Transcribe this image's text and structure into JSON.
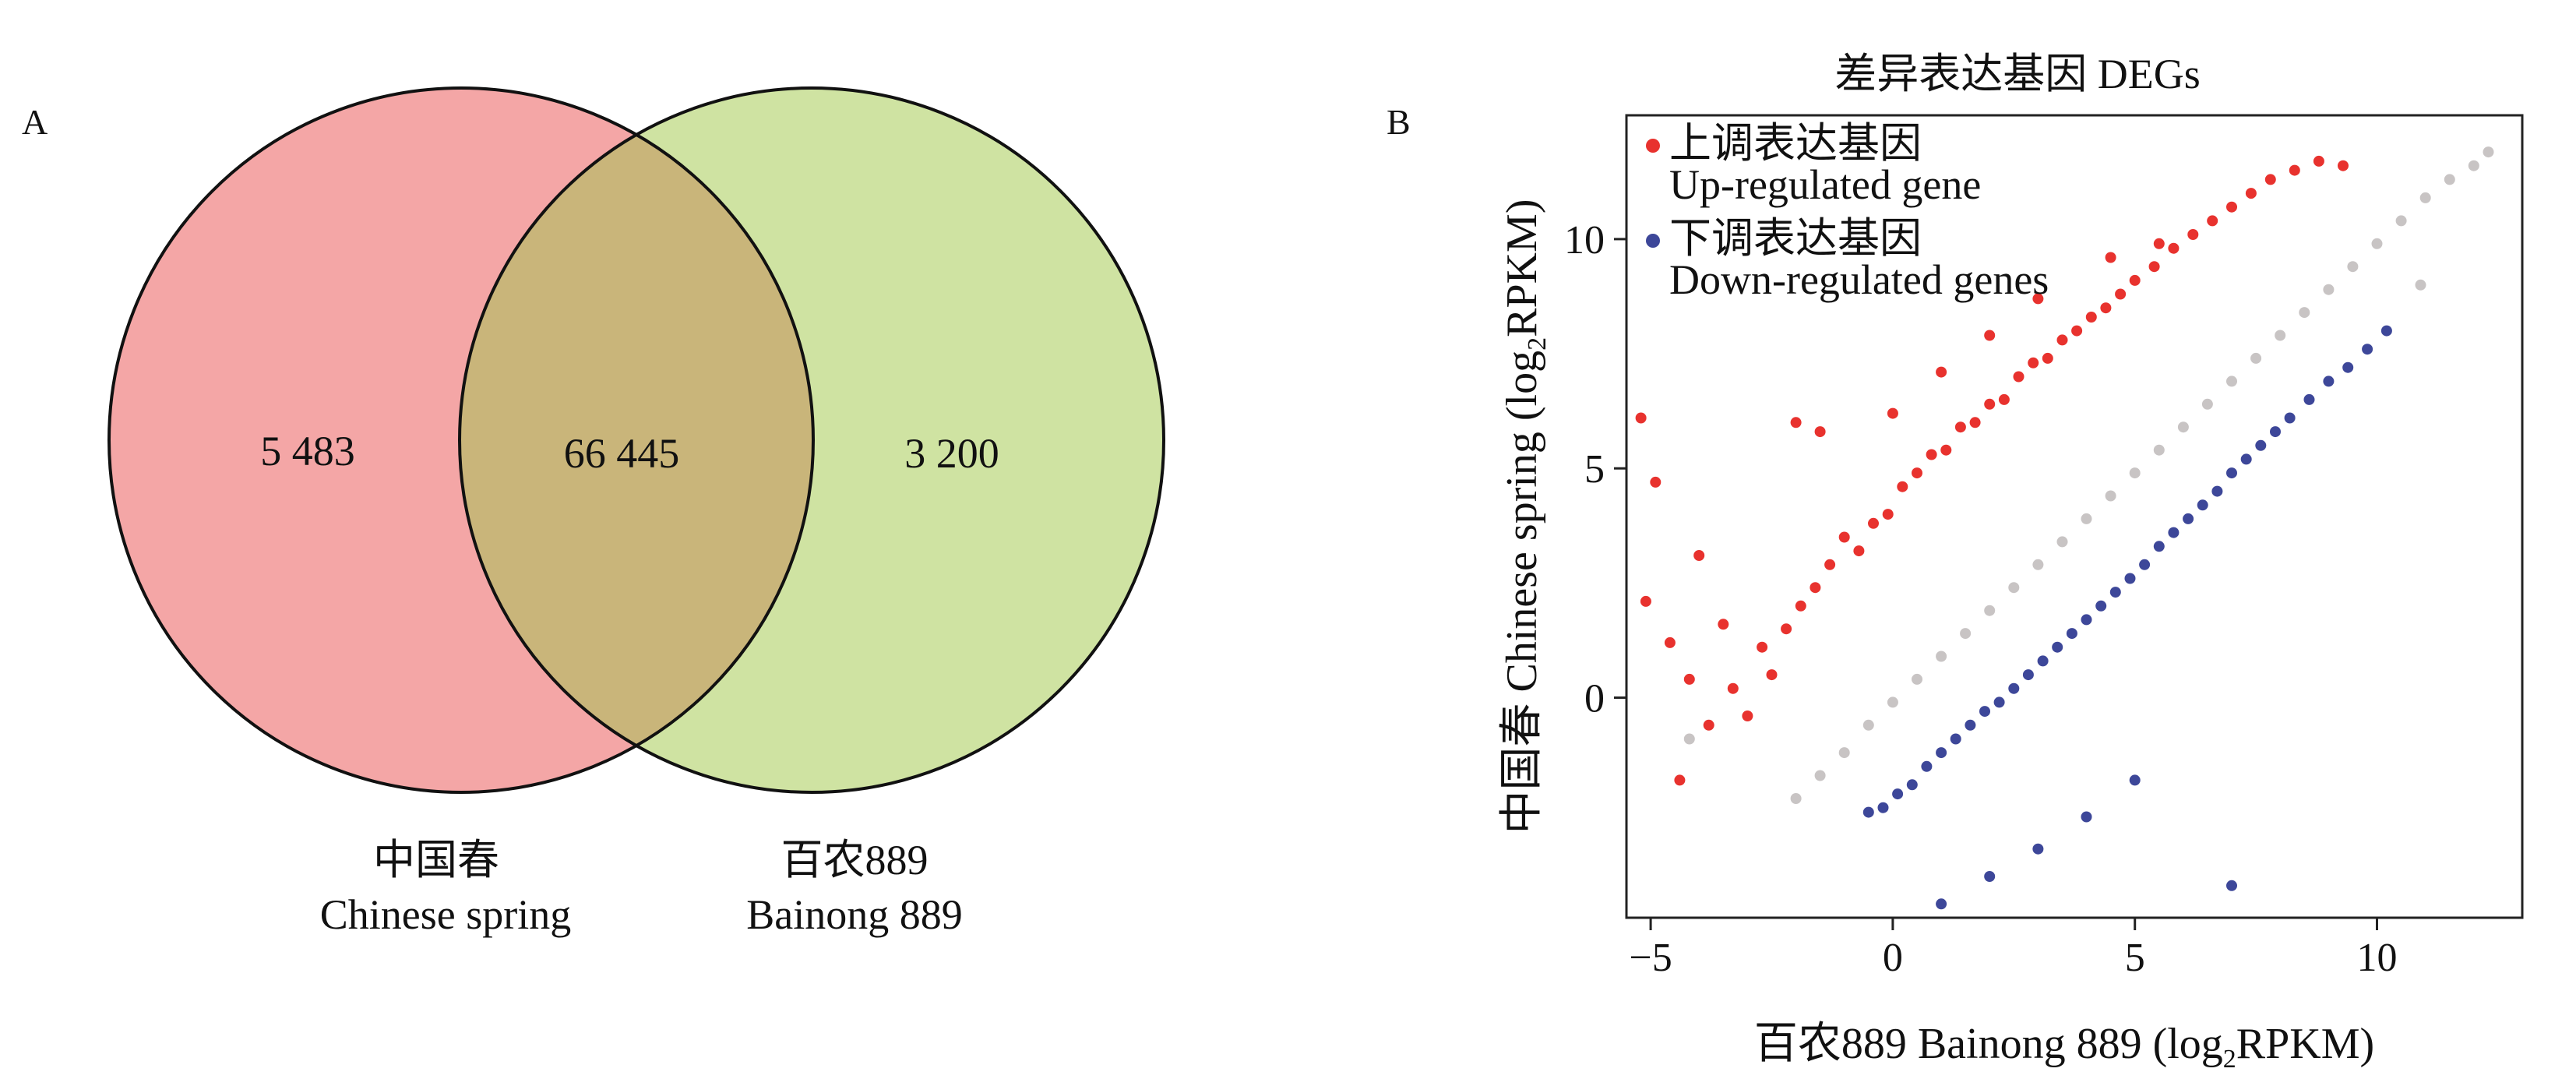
{
  "panel_a": {
    "label": "A",
    "sets": [
      {
        "name_cn": "中国春",
        "name_en": "Chinese spring",
        "color": "#f4a6a6"
      },
      {
        "name_cn": "百农889",
        "name_en": "Bainong 889",
        "color": "#cfe3a2"
      }
    ],
    "overlap_color": "#c9b57a",
    "counts": {
      "left_only": "5 483",
      "both": "66 445",
      "right_only": "3 200"
    }
  },
  "panel_b": {
    "label": "B",
    "title": "差异表达基因 DEGs",
    "legend": [
      {
        "cn": "上调表达基因",
        "en": "Up-regulated gene",
        "color": "#e8322e"
      },
      {
        "cn": "下调表达基因",
        "en": "Down-regulated genes",
        "color": "#3d4799"
      }
    ],
    "xlabel": {
      "pre": "百农889 Bainong 889 (log",
      "sub": "2",
      "post": "RPKM)"
    },
    "ylabel": {
      "pre": "中国春 Chinese spring (log",
      "sub": "2",
      "post": "RPKM)"
    }
  },
  "chart_data": [
    {
      "type": "venn",
      "sets": [
        "中国春 Chinese spring",
        "百农889 Bainong 889"
      ],
      "regions": [
        {
          "sets": [
            "中国春 Chinese spring"
          ],
          "value": 5483
        },
        {
          "sets": [
            "中国春 Chinese spring",
            "百农889 Bainong 889"
          ],
          "value": 66445
        },
        {
          "sets": [
            "百农889 Bainong 889"
          ],
          "value": 3200
        }
      ]
    },
    {
      "type": "scatter",
      "title": "差异表达基因 DEGs",
      "xlabel": "百农889 Bainong 889 (log2RPKM)",
      "ylabel": "中国春 Chinese spring (log2RPKM)",
      "xlim": [
        -5.5,
        13
      ],
      "ylim": [
        -4.8,
        12.7
      ],
      "xticks": [
        -5,
        0,
        5,
        10
      ],
      "yticks": [
        0,
        5,
        10
      ],
      "grid": false,
      "legend_position": "top-left",
      "series": [
        {
          "name": "Up-regulated gene",
          "color": "#e8322e",
          "x": [
            -5.2,
            -4.9,
            -5.1,
            -4.6,
            -4.2,
            -3.8,
            -3.5,
            -4.4,
            -4.0,
            -3.3,
            -3.0,
            -2.7,
            -2.5,
            -2.2,
            -1.9,
            -1.6,
            -1.3,
            -1.0,
            -0.7,
            -0.4,
            -0.1,
            0.2,
            0.5,
            0.8,
            1.1,
            1.4,
            1.7,
            2.0,
            2.3,
            2.6,
            2.9,
            3.2,
            3.5,
            3.8,
            4.1,
            4.4,
            4.7,
            5.0,
            5.4,
            5.8,
            6.2,
            6.6,
            7.0,
            7.4,
            7.8,
            8.3,
            8.8,
            9.3,
            -2.0,
            -1.5,
            0.0,
            1.0,
            2.0,
            3.0,
            4.5,
            5.5
          ],
          "y": [
            6.1,
            4.7,
            2.1,
            1.2,
            0.4,
            -0.6,
            1.6,
            -1.8,
            3.1,
            0.2,
            -0.4,
            1.1,
            0.5,
            1.5,
            2.0,
            2.4,
            2.9,
            3.5,
            3.2,
            3.8,
            4.0,
            4.6,
            4.9,
            5.3,
            5.4,
            5.9,
            6.0,
            6.4,
            6.5,
            7.0,
            7.3,
            7.4,
            7.8,
            8.0,
            8.3,
            8.5,
            8.8,
            9.1,
            9.4,
            9.8,
            10.1,
            10.4,
            10.7,
            11.0,
            11.3,
            11.5,
            11.7,
            11.6,
            6.0,
            5.8,
            6.2,
            7.1,
            7.9,
            8.7,
            9.6,
            9.9
          ]
        },
        {
          "name": "Down-regulated genes",
          "color": "#3d4799",
          "x": [
            -0.5,
            -0.2,
            0.1,
            0.4,
            0.7,
            1.0,
            1.3,
            1.6,
            1.9,
            2.2,
            2.5,
            2.8,
            3.1,
            3.4,
            3.7,
            4.0,
            4.3,
            4.6,
            4.9,
            5.2,
            5.5,
            5.8,
            6.1,
            6.4,
            6.7,
            7.0,
            7.3,
            7.6,
            7.9,
            8.2,
            8.6,
            9.0,
            9.4,
            9.8,
            10.2,
            1.0,
            2.0,
            3.0,
            4.0,
            5.0,
            7.0
          ],
          "y": [
            -2.5,
            -2.4,
            -2.1,
            -1.9,
            -1.5,
            -1.2,
            -0.9,
            -0.6,
            -0.3,
            -0.1,
            0.2,
            0.5,
            0.8,
            1.1,
            1.4,
            1.7,
            2.0,
            2.3,
            2.6,
            2.9,
            3.3,
            3.6,
            3.9,
            4.2,
            4.5,
            4.9,
            5.2,
            5.5,
            5.8,
            6.1,
            6.5,
            6.9,
            7.2,
            7.6,
            8.0,
            -4.5,
            -3.9,
            -3.3,
            -2.6,
            -1.8,
            -4.1
          ]
        },
        {
          "name": "",
          "color": "#c8c4c4",
          "x": [
            -2.0,
            -1.5,
            -1.0,
            -0.5,
            0.0,
            0.5,
            1.0,
            1.5,
            2.0,
            2.5,
            3.0,
            3.5,
            4.0,
            4.5,
            5.0,
            5.5,
            6.0,
            6.5,
            7.0,
            7.5,
            8.0,
            8.5,
            9.0,
            9.5,
            10.0,
            10.5,
            11.0,
            11.5,
            12.0,
            12.3,
            -4.2,
            10.9
          ],
          "y": [
            -2.2,
            -1.7,
            -1.2,
            -0.6,
            -0.1,
            0.4,
            0.9,
            1.4,
            1.9,
            2.4,
            2.9,
            3.4,
            3.9,
            4.4,
            4.9,
            5.4,
            5.9,
            6.4,
            6.9,
            7.4,
            7.9,
            8.4,
            8.9,
            9.4,
            9.9,
            10.4,
            10.9,
            11.3,
            11.6,
            11.9,
            -0.9,
            9.0
          ]
        }
      ]
    }
  ]
}
